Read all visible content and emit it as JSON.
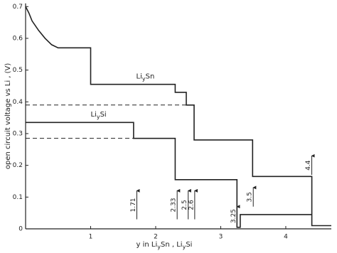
{
  "chart_data": {
    "type": "line",
    "y_label": "open circuit voltage vs Li , (V)",
    "x_label": [
      "y in Li",
      "y",
      "Sn ,  Li",
      "y",
      "Si"
    ],
    "xlim": [
      0,
      4.7
    ],
    "ylim": [
      0,
      0.71
    ],
    "xticks": [
      1,
      2,
      3,
      4
    ],
    "yticks": [
      0,
      0.1,
      0.2,
      0.3,
      0.4,
      0.5,
      0.6,
      0.7
    ],
    "color": "#222",
    "series": [
      {
        "x": [
          0,
          0.05,
          0.1,
          0.2,
          0.3,
          0.4,
          0.5,
          1,
          1,
          2.3,
          2.3,
          2.47,
          2.47,
          2.59,
          2.59,
          3.49,
          3.49,
          4.4,
          4.4,
          4.7
        ],
        "values": [
          0.7,
          0.68,
          0.655,
          0.625,
          0.6,
          0.58,
          0.57,
          0.57,
          0.455,
          0.455,
          0.43,
          0.43,
          0.39,
          0.39,
          0.28,
          0.28,
          0.165,
          0.165,
          0.01,
          0.01
        ]
      },
      {
        "x": [
          0,
          1.66,
          1.66,
          2.3,
          2.3,
          3.25,
          3.25,
          3.3,
          3.3,
          4.4
        ],
        "values": [
          0.335,
          0.335,
          0.285,
          0.285,
          0.155,
          0.155,
          0.005,
          0.005,
          0.045,
          0.045
        ]
      }
    ],
    "reference_lines": [
      {
        "y": 0.39,
        "x": [
          0,
          2.47
        ]
      },
      {
        "y": 0.285,
        "x": [
          0,
          1.66
        ]
      }
    ],
    "curve_labels": [
      {
        "parts": [
          "Li",
          "y",
          "Sn"
        ],
        "x": 1.7,
        "y": 0.48
      },
      {
        "parts": [
          "Li",
          "y",
          "Si"
        ],
        "x": 1.0,
        "y": 0.36
      }
    ],
    "arrows": [
      {
        "x": 1.71,
        "y0": 0.03,
        "y1": 0.12
      },
      {
        "x": 2.33,
        "y0": 0.03,
        "y1": 0.12
      },
      {
        "x": 2.5,
        "y0": 0.03,
        "y1": 0.12
      },
      {
        "x": 2.6,
        "y0": 0.03,
        "y1": 0.12
      },
      {
        "x": 3.25,
        "y0": 0.01,
        "y1": 0.07
      },
      {
        "x": 3.5,
        "y0": 0.07,
        "y1": 0.13
      },
      {
        "x": 4.4,
        "y0": 0.17,
        "y1": 0.23
      }
    ]
  }
}
